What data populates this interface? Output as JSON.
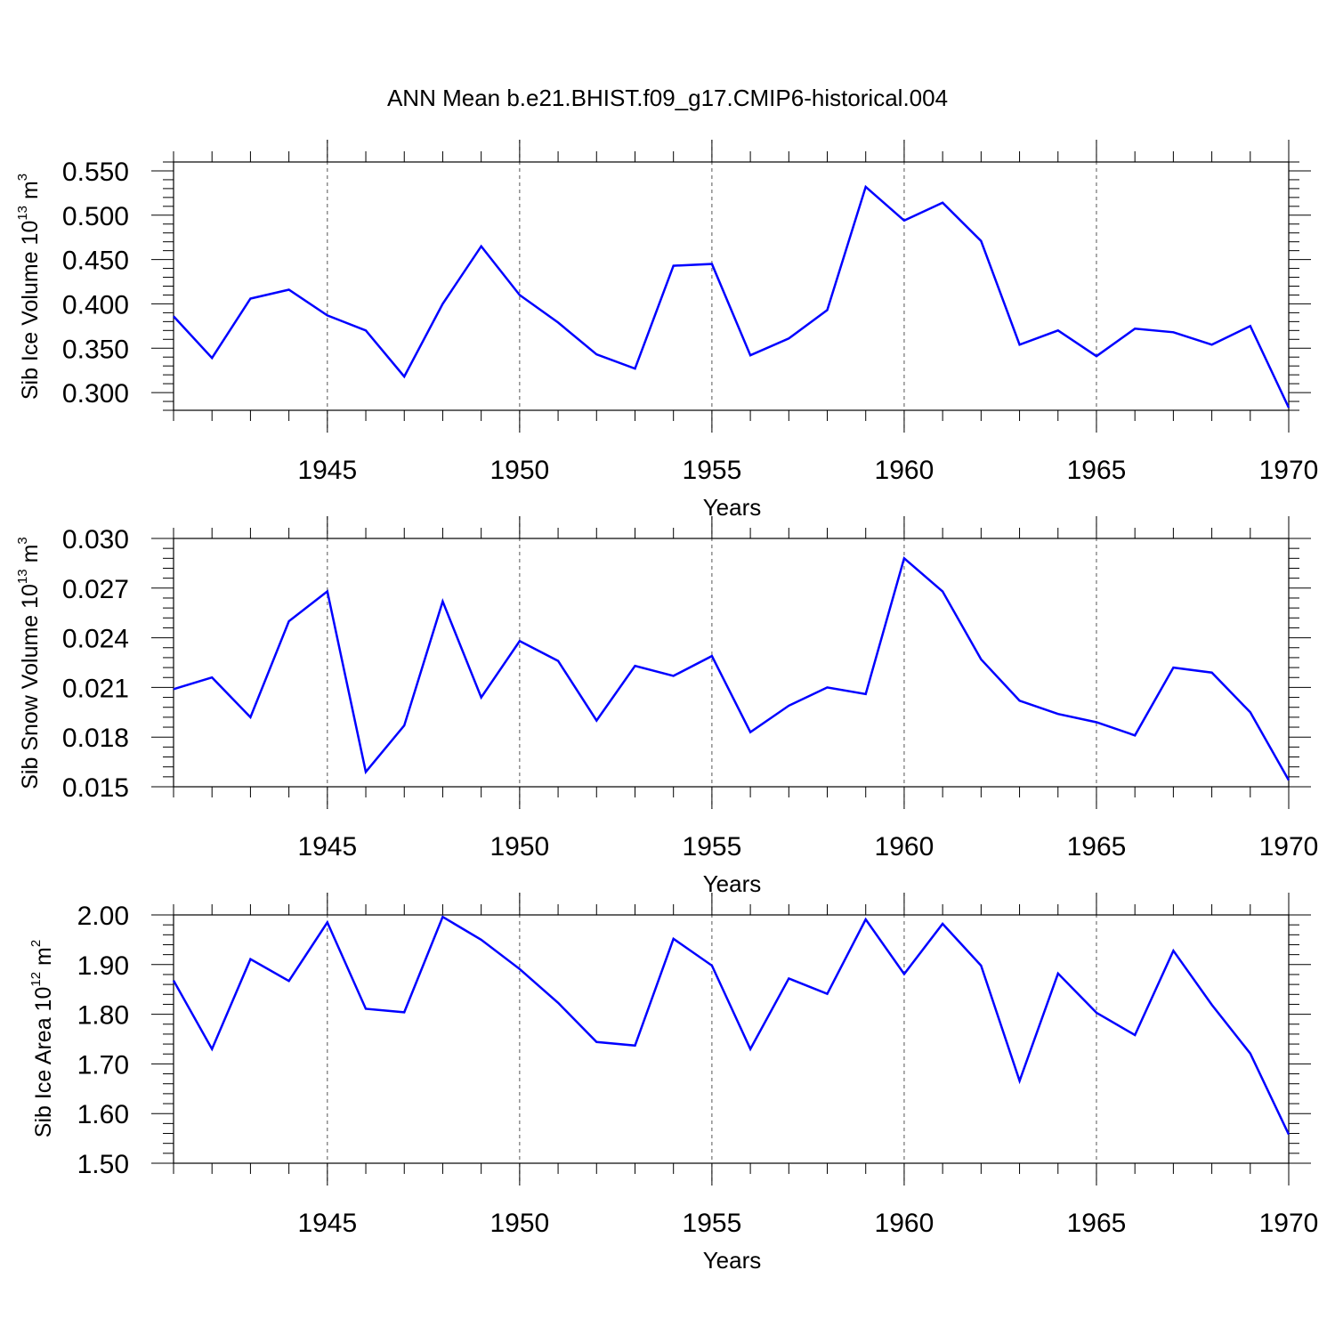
{
  "title": "ANN Mean b.e21.BHIST.f09_g17.CMIP6-historical.004",
  "colors": {
    "line": "#0000ff",
    "axis": "#000000",
    "grid": "#555555"
  },
  "chart_data": [
    {
      "type": "line",
      "ylabel": {
        "main": "Sib Ice Volume 10",
        "exp": "13",
        "unit": " m",
        "unit_exp": "3"
      },
      "xlabel": "Years",
      "xlim": [
        1941,
        1970
      ],
      "ylim": [
        0.28,
        0.56
      ],
      "yticks": [
        "0.300",
        "0.350",
        "0.400",
        "0.450",
        "0.500",
        "0.550"
      ],
      "xticks": [
        "1945",
        "1950",
        "1955",
        "1960",
        "1965",
        "1970"
      ],
      "grid": "vertical dashed at major x ticks",
      "x": [
        1941,
        1942,
        1943,
        1944,
        1945,
        1946,
        1947,
        1948,
        1949,
        1950,
        1951,
        1952,
        1953,
        1954,
        1955,
        1956,
        1957,
        1958,
        1959,
        1960,
        1961,
        1962,
        1963,
        1964,
        1965,
        1966,
        1967,
        1968,
        1969,
        1970
      ],
      "values": [
        0.386,
        0.339,
        0.406,
        0.416,
        0.387,
        0.37,
        0.318,
        0.4,
        0.465,
        0.41,
        0.379,
        0.343,
        0.327,
        0.443,
        0.445,
        0.342,
        0.361,
        0.393,
        0.532,
        0.494,
        0.514,
        0.471,
        0.354,
        0.37,
        0.341,
        0.372,
        0.368,
        0.354,
        0.375,
        0.283
      ]
    },
    {
      "type": "line",
      "ylabel": {
        "main": "Sib Snow Volume 10",
        "exp": "13",
        "unit": " m",
        "unit_exp": "3"
      },
      "xlabel": "Years",
      "xlim": [
        1941,
        1970
      ],
      "ylim": [
        0.015,
        0.03
      ],
      "yticks": [
        "0.015",
        "0.018",
        "0.021",
        "0.024",
        "0.027",
        "0.030"
      ],
      "xticks": [
        "1945",
        "1950",
        "1955",
        "1960",
        "1965",
        "1970"
      ],
      "grid": "vertical dashed at major x ticks",
      "x": [
        1941,
        1942,
        1943,
        1944,
        1945,
        1946,
        1947,
        1948,
        1949,
        1950,
        1951,
        1952,
        1953,
        1954,
        1955,
        1956,
        1957,
        1958,
        1959,
        1960,
        1961,
        1962,
        1963,
        1964,
        1965,
        1966,
        1967,
        1968,
        1969,
        1970
      ],
      "values": [
        0.0209,
        0.0216,
        0.0192,
        0.025,
        0.0268,
        0.0159,
        0.0187,
        0.0262,
        0.0204,
        0.0238,
        0.0226,
        0.019,
        0.0223,
        0.0217,
        0.0229,
        0.0183,
        0.0199,
        0.021,
        0.0206,
        0.0288,
        0.0268,
        0.0227,
        0.0202,
        0.0194,
        0.0189,
        0.0181,
        0.0222,
        0.0219,
        0.0195,
        0.0154
      ]
    },
    {
      "type": "line",
      "ylabel": {
        "main": "Sib Ice Area 10",
        "exp": "12",
        "unit": " m",
        "unit_exp": "2"
      },
      "xlabel": "Years",
      "xlim": [
        1941,
        1970
      ],
      "ylim": [
        1.5,
        2.0
      ],
      "yticks": [
        "1.50",
        "1.60",
        "1.70",
        "1.80",
        "1.90",
        "2.00"
      ],
      "xticks": [
        "1945",
        "1950",
        "1955",
        "1960",
        "1965",
        "1970"
      ],
      "grid": "vertical dashed at major x ticks",
      "x": [
        1941,
        1942,
        1943,
        1944,
        1945,
        1946,
        1947,
        1948,
        1949,
        1950,
        1951,
        1952,
        1953,
        1954,
        1955,
        1956,
        1957,
        1958,
        1959,
        1960,
        1961,
        1962,
        1963,
        1964,
        1965,
        1966,
        1967,
        1968,
        1969,
        1970
      ],
      "values": [
        1.868,
        1.73,
        1.911,
        1.867,
        1.985,
        1.811,
        1.804,
        1.996,
        1.95,
        1.891,
        1.823,
        1.744,
        1.737,
        1.952,
        1.898,
        1.73,
        1.872,
        1.841,
        1.991,
        1.881,
        1.982,
        1.898,
        1.666,
        1.882,
        1.803,
        1.758,
        1.928,
        1.819,
        1.721,
        1.558
      ]
    }
  ]
}
